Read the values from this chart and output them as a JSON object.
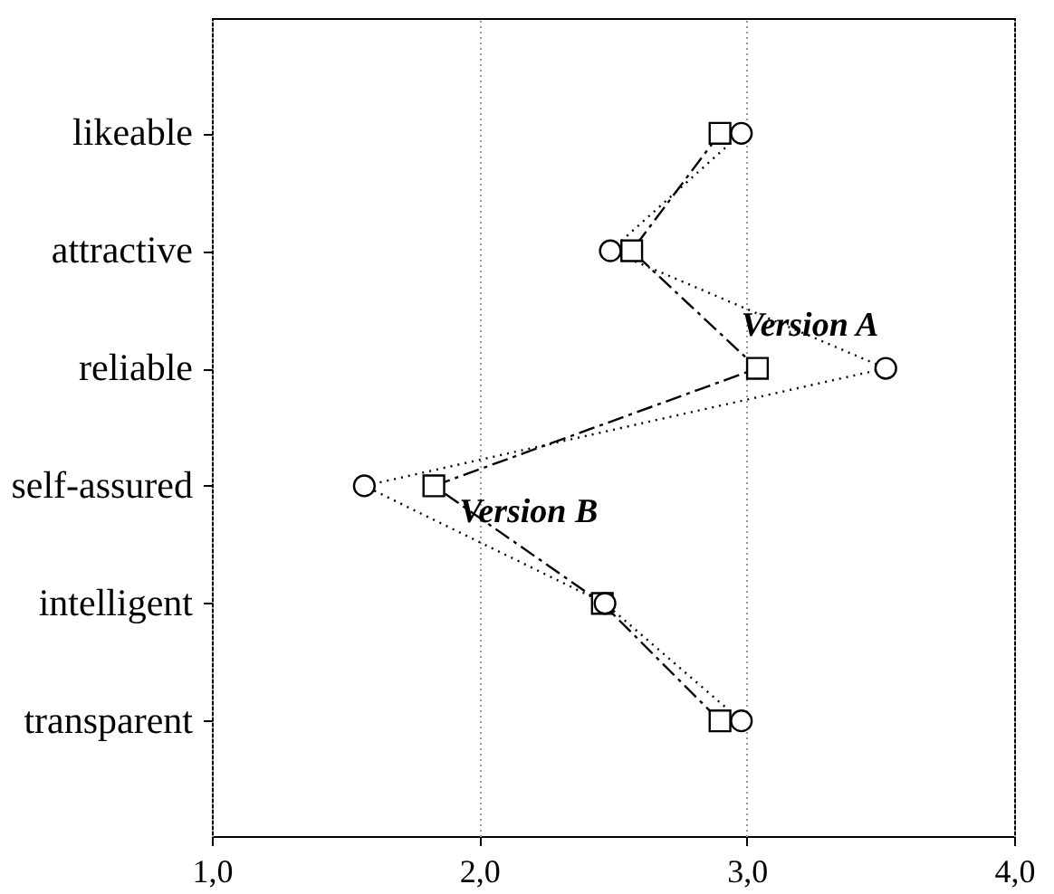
{
  "chart_data": {
    "type": "line",
    "orientation": "horizontal",
    "categories": [
      "likeable",
      "attractive",
      "reliable",
      "self-assured",
      "intelligent",
      "transparent"
    ],
    "series": [
      {
        "name": "Version A",
        "color": "#000000",
        "marker": "circle",
        "line_style": "dotted",
        "values": [
          2.98,
          2.49,
          3.52,
          1.57,
          2.47,
          2.98
        ]
      },
      {
        "name": "Version B",
        "color": "#000000",
        "marker": "square",
        "line_style": "dashdot",
        "values": [
          2.9,
          2.57,
          3.04,
          1.83,
          2.46,
          2.9
        ]
      }
    ],
    "xlim": [
      1,
      4
    ],
    "xticks": [
      {
        "value": 1,
        "label": "1,0"
      },
      {
        "value": 2,
        "label": "2,0"
      },
      {
        "value": 3,
        "label": "3,0"
      },
      {
        "value": 4,
        "label": "4,0"
      }
    ],
    "grid": "x"
  }
}
